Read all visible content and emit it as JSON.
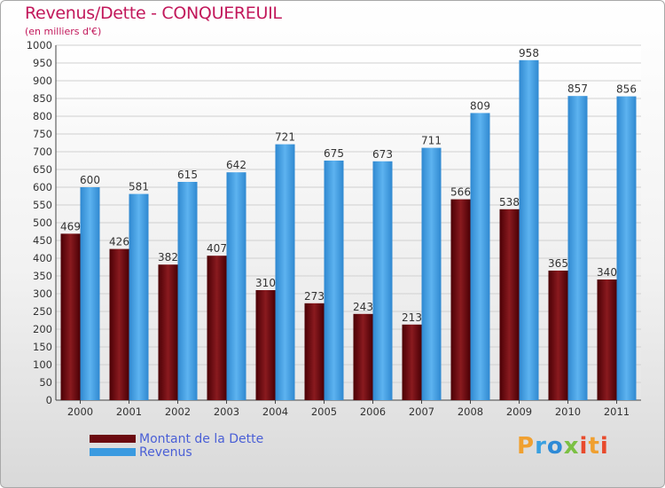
{
  "title": "Revenus/Dette - CONQUEREUIL",
  "subtitle": "(en milliers d'€)",
  "logo": "Proxiti",
  "colors": {
    "dette": "#6b0a10",
    "revenus": "#3a9ae0",
    "title": "#c2185b",
    "legend_text": "#4a5fd6"
  },
  "chart_data": {
    "type": "bar",
    "title": "Revenus/Dette - CONQUEREUIL",
    "subtitle": "(en milliers d'€)",
    "categories": [
      "2000",
      "2001",
      "2002",
      "2003",
      "2004",
      "2005",
      "2006",
      "2007",
      "2008",
      "2009",
      "2010",
      "2011"
    ],
    "series": [
      {
        "name": "Montant de la Dette",
        "values": [
          469,
          426,
          382,
          407,
          310,
          273,
          243,
          213,
          566,
          538,
          365,
          340
        ]
      },
      {
        "name": "Revenus",
        "values": [
          600,
          581,
          615,
          642,
          721,
          675,
          673,
          711,
          809,
          958,
          857,
          856
        ]
      }
    ],
    "ylim": [
      0,
      1000
    ],
    "yticks": [
      0,
      50,
      100,
      150,
      200,
      250,
      300,
      350,
      400,
      450,
      500,
      550,
      600,
      650,
      700,
      750,
      800,
      850,
      900,
      950,
      1000
    ],
    "grid": true,
    "legend_position": "bottom-left"
  }
}
